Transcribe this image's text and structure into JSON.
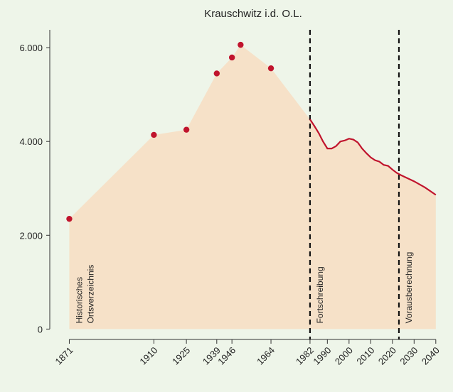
{
  "chart_data": {
    "type": "line",
    "title": "Krauschwitz i.d. O.L.",
    "background": "#eef5e9",
    "area_color": "#f6e1c8",
    "xlim": [
      1862,
      2044
    ],
    "ylim": [
      -100,
      6380
    ],
    "xticks": [
      1871,
      1910,
      1925,
      1939,
      1946,
      1964,
      1982,
      1990,
      2000,
      2010,
      2020,
      2030,
      2040
    ],
    "yticks": [
      0,
      {
        "value": 2000,
        "label": "2.000"
      },
      {
        "value": 4000,
        "label": "4.000"
      },
      {
        "value": 6000,
        "label": "6.000"
      }
    ],
    "series": [
      {
        "style": "points",
        "color": "#c0142d",
        "x": [
          1871,
          1910,
          1925,
          1939,
          1946,
          1950,
          1964
        ],
        "values": [
          2350,
          4140,
          4250,
          5450,
          5790,
          6060,
          5560
        ]
      },
      {
        "style": "line",
        "color": "#c0142d",
        "x": [
          1982,
          1984,
          1986,
          1988,
          1990,
          1992,
          1994,
          1996,
          1998,
          2000,
          2002,
          2004,
          2006,
          2008,
          2010,
          2012,
          2014,
          2016,
          2018,
          2020,
          2022,
          2024,
          2030,
          2035,
          2040
        ],
        "values": [
          4470,
          4330,
          4180,
          4000,
          3850,
          3850,
          3900,
          4000,
          4020,
          4060,
          4040,
          3980,
          3850,
          3750,
          3660,
          3600,
          3570,
          3500,
          3480,
          3400,
          3330,
          3280,
          3150,
          3020,
          2862
        ]
      }
    ],
    "vlines": [
      1982,
      2023
    ],
    "periods": [
      {
        "start": 1871,
        "label": [
          "Historisches",
          "Ortsverzeichnis"
        ]
      },
      {
        "start": 1982,
        "label": [
          "Fortschreibung"
        ]
      },
      {
        "start": 2023,
        "label": [
          "Vorausberechnung"
        ]
      }
    ]
  }
}
